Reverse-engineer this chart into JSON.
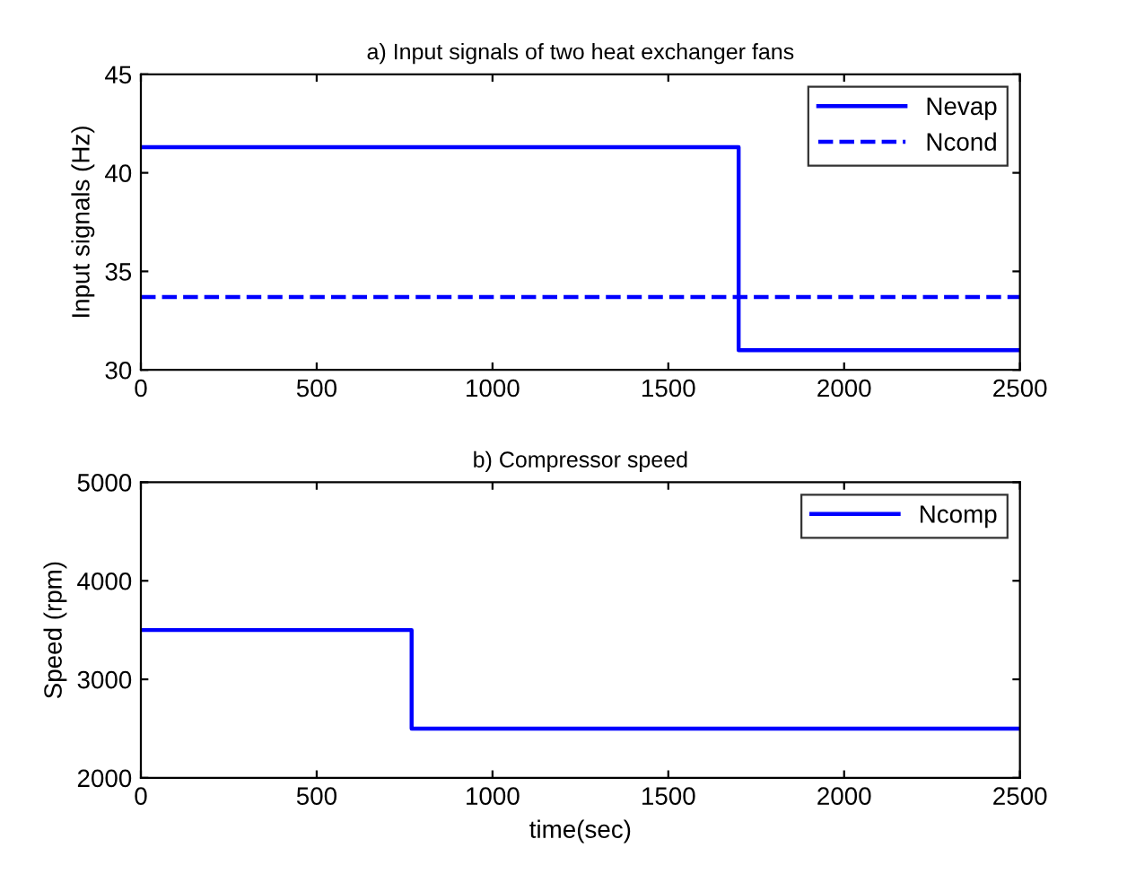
{
  "chart_data": [
    {
      "type": "step",
      "title": "a) Input signals of two heat exchanger fans",
      "ylabel": "Input signals (Hz)",
      "x": [
        0,
        1700,
        2500
      ],
      "series": [
        {
          "name": "Nevap",
          "color": "#0000ff",
          "values": [
            41.3,
            31.0,
            31.0
          ],
          "line_style": "solid"
        },
        {
          "name": "Ncond",
          "color": "#0000ff",
          "values": [
            33.7,
            33.7,
            33.7
          ],
          "line_style": "dashed"
        }
      ],
      "xlim": [
        0,
        2500
      ],
      "xticks": [
        0,
        500,
        1000,
        1500,
        2000,
        2500
      ],
      "ylim": [
        30,
        45
      ],
      "yticks": [
        30,
        35,
        40,
        45
      ],
      "legend": "top right",
      "grid": false
    },
    {
      "type": "step",
      "title": "b) Compressor speed",
      "xlabel": "time(sec)",
      "ylabel": "Speed (rpm)",
      "x": [
        0,
        770,
        2500
      ],
      "series": [
        {
          "name": "Ncomp",
          "color": "#0000ff",
          "values": [
            3500,
            2500,
            2500
          ],
          "line_style": "solid"
        }
      ],
      "xlim": [
        0,
        2500
      ],
      "xticks": [
        0,
        500,
        1000,
        1500,
        2000,
        2500
      ],
      "ylim": [
        2000,
        5000
      ],
      "yticks": [
        2000,
        3000,
        4000,
        5000
      ],
      "legend": "top right",
      "grid": false
    }
  ]
}
